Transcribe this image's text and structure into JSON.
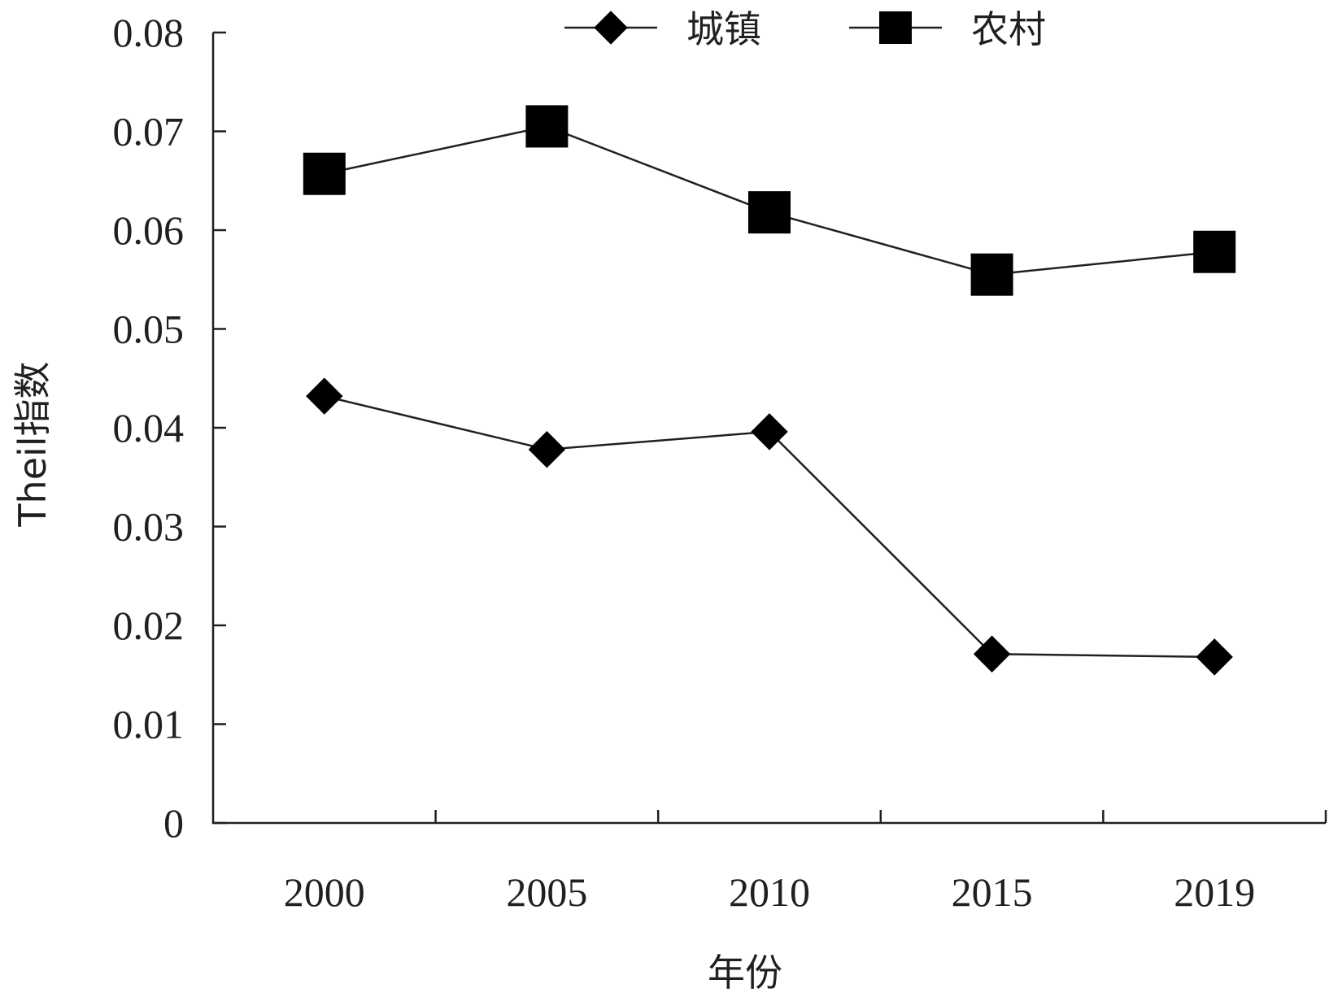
{
  "chart_data": {
    "type": "line",
    "categories": [
      "2000",
      "2005",
      "2010",
      "2015",
      "2019"
    ],
    "series": [
      {
        "name": "城镇",
        "marker": "diamond",
        "values": [
          0.0432,
          0.0378,
          0.0396,
          0.0171,
          0.0168
        ]
      },
      {
        "name": "农村",
        "marker": "square",
        "values": [
          0.0657,
          0.0705,
          0.0618,
          0.0555,
          0.0578
        ]
      }
    ],
    "title": "",
    "xlabel": "年份",
    "ylabel": "Theil指数",
    "ylim": [
      0,
      0.08
    ],
    "yticks": [
      "0",
      "0.01",
      "0.02",
      "0.03",
      "0.04",
      "0.05",
      "0.06",
      "0.07",
      "0.08"
    ],
    "grid": false,
    "legend_position": "top",
    "colors": {
      "line": "#231f20",
      "marker": "#000000"
    }
  }
}
